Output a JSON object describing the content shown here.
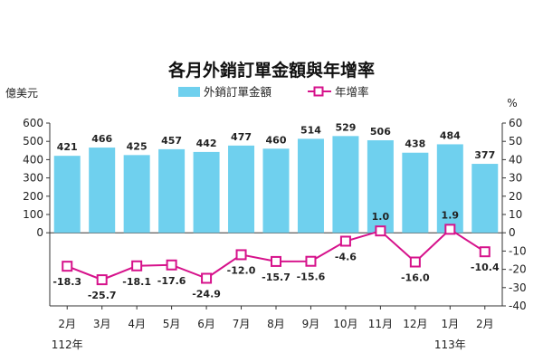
{
  "chart_data": {
    "type": "bar",
    "title": "各月外銷訂單金額與年增率",
    "left_axis_unit": "億美元",
    "right_axis_unit": "%",
    "categories": [
      "2月",
      "3月",
      "4月",
      "5月",
      "6月",
      "7月",
      "8月",
      "9月",
      "10月",
      "11月",
      "12月",
      "1月",
      "2月"
    ],
    "year_labels": [
      {
        "category_index": 0,
        "text": "112年"
      },
      {
        "category_index": 11,
        "text": "113年"
      }
    ],
    "series": [
      {
        "name": "外銷訂單金額",
        "type": "bar",
        "axis": "left",
        "color": "#6fd0ee",
        "values": [
          421,
          466,
          425,
          457,
          442,
          477,
          460,
          514,
          529,
          506,
          438,
          484,
          377
        ]
      },
      {
        "name": "年增率",
        "type": "line",
        "axis": "right",
        "color": "#d6128b",
        "values": [
          -18.3,
          -25.7,
          -18.1,
          -17.6,
          -24.9,
          -12.0,
          -15.7,
          -15.6,
          -4.6,
          1.0,
          -16.0,
          1.9,
          -10.4
        ],
        "labels": [
          "-18.3",
          "-25.7",
          "-18.1",
          "-17.6",
          "-24.9",
          "-12.0",
          "-15.7",
          "-15.6",
          "-4.6",
          "1.0",
          "-16.0",
          "1.9",
          "-10.4"
        ]
      }
    ],
    "left_ticks": [
      0,
      100,
      200,
      300,
      400,
      500,
      600
    ],
    "right_ticks": [
      -40,
      -30,
      -20,
      -10,
      0,
      10,
      20,
      30,
      40,
      50,
      60
    ],
    "ylim_left": [
      -400,
      600
    ],
    "ylim_right": [
      -40,
      60
    ],
    "grid": false,
    "legend_position": "top-center"
  }
}
